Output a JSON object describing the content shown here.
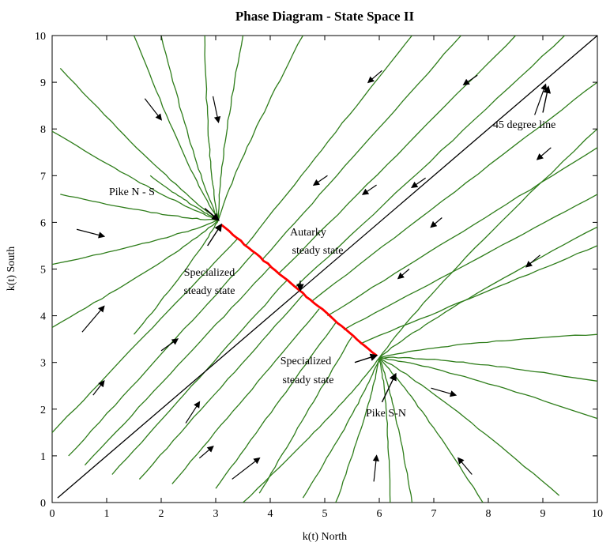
{
  "chart_data": {
    "type": "line",
    "title": "Phase Diagram - State Space II",
    "xlabel": "k(t) North",
    "ylabel": "k(t) South",
    "xlim": [
      0,
      10
    ],
    "ylim": [
      0,
      10
    ],
    "xticks": [
      "0",
      "1",
      "2",
      "3",
      "4",
      "5",
      "6",
      "7",
      "8",
      "9",
      "10"
    ],
    "yticks": [
      "0",
      "1",
      "2",
      "3",
      "4",
      "5",
      "6",
      "7",
      "8",
      "9",
      "10"
    ],
    "grid": false,
    "colors": {
      "trajectory": "#2e7d1a",
      "steady_state_line": "#ff0000",
      "degree_line": "#000000"
    },
    "special_points": {
      "pike_n_s": [
        3.05,
        6.05
      ],
      "pike_s_n": [
        6.0,
        3.1
      ],
      "specialized_ns": [
        3.1,
        5.95
      ],
      "specialized_sn": [
        5.95,
        3.15
      ]
    },
    "series": [
      {
        "name": "45 degree line",
        "x": [
          0.1,
          10
        ],
        "y": [
          0.1,
          10
        ]
      },
      {
        "name": "Autarky steady state",
        "x": [
          3.1,
          5.95
        ],
        "y": [
          5.95,
          3.15
        ]
      }
    ],
    "trajectories_to_pike_n_s": [
      [
        0.15,
        9.3
      ],
      [
        1.5,
        10.0
      ],
      [
        2.0,
        10.0
      ],
      [
        2.8,
        10.0
      ],
      [
        3.5,
        10.0
      ],
      [
        4.6,
        10.0
      ],
      [
        0.0,
        7.95
      ],
      [
        1.8,
        7.0
      ],
      [
        0.15,
        6.6
      ],
      [
        0.0,
        5.1
      ],
      [
        0.0,
        3.75
      ],
      [
        1.5,
        3.6
      ]
    ],
    "trajectories_to_pike_s_n": [
      [
        10.0,
        8.0
      ],
      [
        10.0,
        5.9
      ],
      [
        10.0,
        3.6
      ],
      [
        10.0,
        2.6
      ],
      [
        10.0,
        1.8
      ],
      [
        9.3,
        0.15
      ],
      [
        7.9,
        0.0
      ],
      [
        6.6,
        0.0
      ],
      [
        6.2,
        0.0
      ],
      [
        5.2,
        0.0
      ],
      [
        4.6,
        0.1
      ],
      [
        3.5,
        0.0
      ]
    ],
    "trajectories_to_autarky": [
      [
        [
          0.0,
          1.5
        ],
        [
          3.4,
          5.65
        ]
      ],
      [
        [
          0.3,
          1.0
        ],
        [
          3.7,
          5.35
        ]
      ],
      [
        [
          0.6,
          0.8
        ],
        [
          4.0,
          5.05
        ]
      ],
      [
        [
          1.1,
          0.6
        ],
        [
          4.3,
          4.75
        ]
      ],
      [
        [
          1.6,
          0.5
        ],
        [
          4.6,
          4.45
        ]
      ],
      [
        [
          2.2,
          0.4
        ],
        [
          4.9,
          4.15
        ]
      ],
      [
        [
          3.0,
          0.3
        ],
        [
          5.2,
          3.85
        ]
      ],
      [
        [
          3.8,
          0.2
        ],
        [
          5.5,
          3.55
        ]
      ],
      [
        [
          6.6,
          10.0
        ],
        [
          3.55,
          5.5
        ]
      ],
      [
        [
          7.5,
          10.0
        ],
        [
          3.85,
          5.2
        ]
      ],
      [
        [
          8.5,
          10.0
        ],
        [
          4.15,
          4.9
        ]
      ],
      [
        [
          9.4,
          10.0
        ],
        [
          4.45,
          4.6
        ]
      ],
      [
        [
          10.0,
          9.0
        ],
        [
          4.75,
          4.3
        ]
      ],
      [
        [
          10.0,
          7.6
        ],
        [
          5.05,
          4.0
        ]
      ],
      [
        [
          10.0,
          6.6
        ],
        [
          5.35,
          3.7
        ]
      ],
      [
        [
          10.0,
          5.5
        ],
        [
          5.65,
          3.4
        ]
      ]
    ],
    "direction_arrows": [
      [
        [
          1.7,
          8.65
        ],
        [
          2.0,
          8.2
        ]
      ],
      [
        [
          2.95,
          8.7
        ],
        [
          3.05,
          8.15
        ]
      ],
      [
        [
          6.05,
          9.25
        ],
        [
          5.8,
          9.0
        ]
      ],
      [
        [
          7.8,
          9.15
        ],
        [
          7.55,
          8.95
        ]
      ],
      [
        [
          9.15,
          7.6
        ],
        [
          8.9,
          7.35
        ]
      ],
      [
        [
          5.05,
          7.0
        ],
        [
          4.8,
          6.8
        ]
      ],
      [
        [
          5.95,
          6.8
        ],
        [
          5.7,
          6.6
        ]
      ],
      [
        [
          6.85,
          6.95
        ],
        [
          6.6,
          6.75
        ]
      ],
      [
        [
          7.15,
          6.1
        ],
        [
          6.95,
          5.9
        ]
      ],
      [
        [
          6.55,
          5.0
        ],
        [
          6.35,
          4.8
        ]
      ],
      [
        [
          8.95,
          5.3
        ],
        [
          8.7,
          5.05
        ]
      ],
      [
        [
          0.45,
          5.85
        ],
        [
          0.95,
          5.7
        ]
      ],
      [
        [
          0.55,
          3.65
        ],
        [
          0.95,
          4.2
        ]
      ],
      [
        [
          2.0,
          3.25
        ],
        [
          2.3,
          3.5
        ]
      ],
      [
        [
          0.75,
          2.3
        ],
        [
          0.95,
          2.6
        ]
      ],
      [
        [
          2.45,
          1.7
        ],
        [
          2.7,
          2.15
        ]
      ],
      [
        [
          2.7,
          0.95
        ],
        [
          2.95,
          1.2
        ]
      ],
      [
        [
          3.3,
          0.5
        ],
        [
          3.8,
          0.95
        ]
      ],
      [
        [
          6.95,
          2.45
        ],
        [
          7.4,
          2.3
        ]
      ],
      [
        [
          7.7,
          0.6
        ],
        [
          7.45,
          0.95
        ]
      ],
      [
        [
          5.9,
          0.45
        ],
        [
          5.95,
          1.0
        ]
      ],
      [
        [
          8.85,
          8.3
        ],
        [
          9.05,
          8.95
        ]
      ]
    ],
    "annotations": {
      "pike_ns": "Pike N - S",
      "specialized_1_line1": "Specialized",
      "specialized_1_line2": "steady state",
      "autarky_line1": "Autarky",
      "autarky_line2": "steady state",
      "degree_line": "45 degree line",
      "specialized_2_line1": "Specialized",
      "specialized_2_line2": "steady state",
      "pike_sn": "Pike S-N"
    }
  }
}
